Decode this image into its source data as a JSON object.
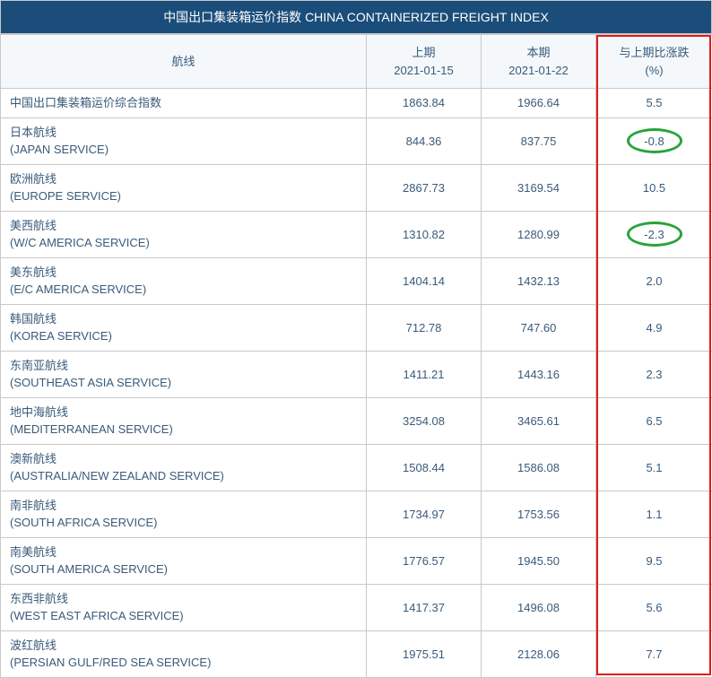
{
  "title": "中国出口集装箱运价指数 CHINA CONTAINERIZED FREIGHT INDEX",
  "columns": {
    "route": "航线",
    "prev_label": "上期",
    "prev_date": "2021-01-15",
    "curr_label": "本期",
    "curr_date": "2021-01-22",
    "pct_label": "与上期比涨跌",
    "pct_unit": "(%)"
  },
  "colors": {
    "header_bg": "#1a4d7a",
    "header_text": "#ffffff",
    "row_header_bg": "#f4f8fb",
    "text": "#3a5a7a",
    "border": "#c9c9c9",
    "highlight_box": "#e11b1b",
    "ellipse": "#27a33a"
  },
  "rows": [
    {
      "cn": "中国出口集装箱运价综合指数",
      "en": "",
      "prev": "1863.84",
      "curr": "1966.64",
      "pct": "5.5"
    },
    {
      "cn": "日本航线",
      "en": "(JAPAN SERVICE)",
      "prev": "844.36",
      "curr": "837.75",
      "pct": "-0.8",
      "ellipse": true
    },
    {
      "cn": "欧洲航线",
      "en": "(EUROPE SERVICE)",
      "prev": "2867.73",
      "curr": "3169.54",
      "pct": "10.5"
    },
    {
      "cn": "美西航线",
      "en": "(W/C AMERICA SERVICE)",
      "prev": "1310.82",
      "curr": "1280.99",
      "pct": "-2.3",
      "ellipse": true
    },
    {
      "cn": "美东航线",
      "en": "(E/C AMERICA SERVICE)",
      "prev": "1404.14",
      "curr": "1432.13",
      "pct": "2.0"
    },
    {
      "cn": "韩国航线",
      "en": "(KOREA SERVICE)",
      "prev": "712.78",
      "curr": "747.60",
      "pct": "4.9"
    },
    {
      "cn": "东南亚航线",
      "en": "(SOUTHEAST ASIA SERVICE)",
      "prev": "1411.21",
      "curr": "1443.16",
      "pct": "2.3"
    },
    {
      "cn": "地中海航线",
      "en": "(MEDITERRANEAN SERVICE)",
      "prev": "3254.08",
      "curr": "3465.61",
      "pct": "6.5"
    },
    {
      "cn": "澳新航线",
      "en": "(AUSTRALIA/NEW ZEALAND SERVICE)",
      "prev": "1508.44",
      "curr": "1586.08",
      "pct": "5.1"
    },
    {
      "cn": "南非航线",
      "en": "(SOUTH AFRICA SERVICE)",
      "prev": "1734.97",
      "curr": "1753.56",
      "pct": "1.1"
    },
    {
      "cn": "南美航线",
      "en": "(SOUTH AMERICA SERVICE)",
      "prev": "1776.57",
      "curr": "1945.50",
      "pct": "9.5"
    },
    {
      "cn": "东西非航线",
      "en": "(WEST EAST AFRICA SERVICE)",
      "prev": "1417.37",
      "curr": "1496.08",
      "pct": "5.6"
    },
    {
      "cn": "波红航线",
      "en": "(PERSIAN GULF/RED SEA SERVICE)",
      "prev": "1975.51",
      "curr": "2128.06",
      "pct": "7.7"
    }
  ],
  "highlight_column_index": 3
}
